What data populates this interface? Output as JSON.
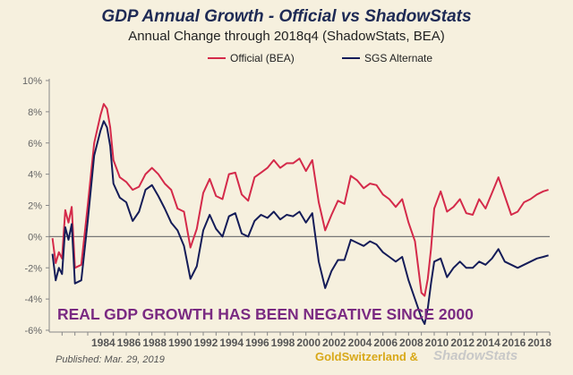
{
  "chart_data": {
    "type": "line",
    "title": "GDP Annual Growth - Official vs ShadowStats",
    "subtitle": "Annual Change through 2018q4  (ShadowStats, BEA)",
    "xlabel": "",
    "ylabel": "",
    "xlim": [
      1980,
      2019
    ],
    "ylim": [
      -6,
      10
    ],
    "y_ticks": [
      "10%",
      "8%",
      "6%",
      "4%",
      "2%",
      "0%",
      "-2%",
      "-4%",
      "-6%"
    ],
    "y_tick_values": [
      10,
      8,
      6,
      4,
      2,
      0,
      -2,
      -4,
      -6
    ],
    "x_ticks": [
      "1984",
      "1986",
      "1988",
      "1990",
      "1992",
      "1994",
      "1996",
      "1998",
      "2000",
      "2002",
      "2004",
      "2006",
      "2008",
      "2010",
      "2012",
      "2014",
      "2016",
      "2018"
    ],
    "x_tick_values": [
      1984,
      1986,
      1988,
      1990,
      1992,
      1994,
      1996,
      1998,
      2000,
      2002,
      2004,
      2006,
      2008,
      2010,
      2012,
      2014,
      2016,
      2018
    ],
    "grid": false,
    "legend_position": "top",
    "annotation": "REAL GDP GROWTH HAS BEEN NEGATIVE SINCE 2000",
    "series": [
      {
        "name": "Official (BEA)",
        "color": "#d42a4a",
        "x": [
          1980.25,
          1980.5,
          1980.75,
          1981.0,
          1981.25,
          1981.5,
          1981.75,
          1982.0,
          1982.5,
          1983.0,
          1983.5,
          1984.0,
          1984.25,
          1984.5,
          1984.75,
          1985.0,
          1985.5,
          1986.0,
          1986.5,
          1987.0,
          1987.5,
          1988.0,
          1988.5,
          1989.0,
          1989.5,
          1990.0,
          1990.5,
          1991.0,
          1991.5,
          1992.0,
          1992.5,
          1993.0,
          1993.5,
          1994.0,
          1994.5,
          1995.0,
          1995.5,
          1996.0,
          1996.5,
          1997.0,
          1997.5,
          1998.0,
          1998.5,
          1999.0,
          1999.5,
          2000.0,
          2000.5,
          2001.0,
          2001.5,
          2002.0,
          2002.5,
          2003.0,
          2003.5,
          2004.0,
          2004.5,
          2005.0,
          2005.5,
          2006.0,
          2006.5,
          2007.0,
          2007.5,
          2008.0,
          2008.5,
          2009.0,
          2009.25,
          2009.5,
          2009.75,
          2010.0,
          2010.5,
          2011.0,
          2011.5,
          2012.0,
          2012.5,
          2013.0,
          2013.5,
          2014.0,
          2014.5,
          2015.0,
          2015.5,
          2016.0,
          2016.5,
          2017.0,
          2017.5,
          2018.0,
          2018.5,
          2018.9
        ],
        "values": [
          -0.1,
          -1.7,
          -1.0,
          -1.4,
          1.7,
          0.9,
          1.9,
          -2.0,
          -1.8,
          2.0,
          6.0,
          7.8,
          8.5,
          8.2,
          7.0,
          4.9,
          3.8,
          3.5,
          3.0,
          3.2,
          4.0,
          4.4,
          4.0,
          3.4,
          3.0,
          1.8,
          1.6,
          -0.7,
          0.5,
          2.8,
          3.7,
          2.6,
          2.4,
          4.0,
          4.1,
          2.7,
          2.3,
          3.8,
          4.1,
          4.4,
          4.9,
          4.4,
          4.7,
          4.7,
          5.0,
          4.2,
          4.9,
          2.2,
          0.4,
          1.4,
          2.3,
          2.1,
          3.9,
          3.6,
          3.1,
          3.4,
          3.3,
          2.7,
          2.4,
          1.9,
          2.4,
          0.9,
          -0.3,
          -3.6,
          -3.8,
          -2.7,
          -0.8,
          1.8,
          2.9,
          1.6,
          1.9,
          2.4,
          1.5,
          1.4,
          2.4,
          1.8,
          2.8,
          3.8,
          2.6,
          1.4,
          1.6,
          2.2,
          2.4,
          2.7,
          2.9,
          3.0
        ]
      },
      {
        "name": "SGS Alternate",
        "color": "#141c58",
        "x": [
          1980.25,
          1980.5,
          1980.75,
          1981.0,
          1981.25,
          1981.5,
          1981.75,
          1982.0,
          1982.5,
          1983.0,
          1983.5,
          1984.0,
          1984.25,
          1984.5,
          1984.75,
          1985.0,
          1985.5,
          1986.0,
          1986.5,
          1987.0,
          1987.5,
          1988.0,
          1988.5,
          1989.0,
          1989.5,
          1990.0,
          1990.5,
          1991.0,
          1991.5,
          1992.0,
          1992.5,
          1993.0,
          1993.5,
          1994.0,
          1994.5,
          1995.0,
          1995.5,
          1996.0,
          1996.5,
          1997.0,
          1997.5,
          1998.0,
          1998.5,
          1999.0,
          1999.5,
          2000.0,
          2000.5,
          2001.0,
          2001.5,
          2002.0,
          2002.5,
          2003.0,
          2003.5,
          2004.0,
          2004.5,
          2005.0,
          2005.5,
          2006.0,
          2006.5,
          2007.0,
          2007.5,
          2008.0,
          2008.5,
          2009.0,
          2009.25,
          2009.5,
          2009.75,
          2010.0,
          2010.5,
          2011.0,
          2011.5,
          2012.0,
          2012.5,
          2013.0,
          2013.5,
          2014.0,
          2014.5,
          2015.0,
          2015.5,
          2016.0,
          2016.5,
          2017.0,
          2017.5,
          2018.0,
          2018.5,
          2018.9
        ],
        "values": [
          -1.1,
          -2.8,
          -2.0,
          -2.4,
          0.6,
          -0.2,
          0.8,
          -3.0,
          -2.8,
          1.0,
          5.2,
          6.8,
          7.4,
          7.0,
          5.8,
          3.4,
          2.5,
          2.2,
          1.0,
          1.6,
          3.0,
          3.3,
          2.6,
          1.8,
          0.9,
          0.4,
          -0.6,
          -2.7,
          -1.9,
          0.4,
          1.4,
          0.5,
          0.0,
          1.3,
          1.5,
          0.2,
          0.0,
          1.0,
          1.4,
          1.2,
          1.6,
          1.1,
          1.4,
          1.3,
          1.6,
          0.9,
          1.5,
          -1.6,
          -3.3,
          -2.2,
          -1.5,
          -1.5,
          -0.2,
          -0.4,
          -0.6,
          -0.3,
          -0.5,
          -1.0,
          -1.3,
          -1.6,
          -1.3,
          -2.8,
          -4.0,
          -5.2,
          -5.6,
          -4.6,
          -3.0,
          -1.6,
          -1.4,
          -2.6,
          -2.0,
          -1.6,
          -2.0,
          -2.0,
          -1.6,
          -1.8,
          -1.4,
          -0.8,
          -1.6,
          -1.8,
          -2.0,
          -1.8,
          -1.6,
          -1.4,
          -1.3,
          -1.2
        ]
      }
    ]
  },
  "footer": {
    "published": "Published: Mar. 29, 2019",
    "credit_gold": "GoldSwitzerland &",
    "credit_shadow": "ShadowStats"
  }
}
